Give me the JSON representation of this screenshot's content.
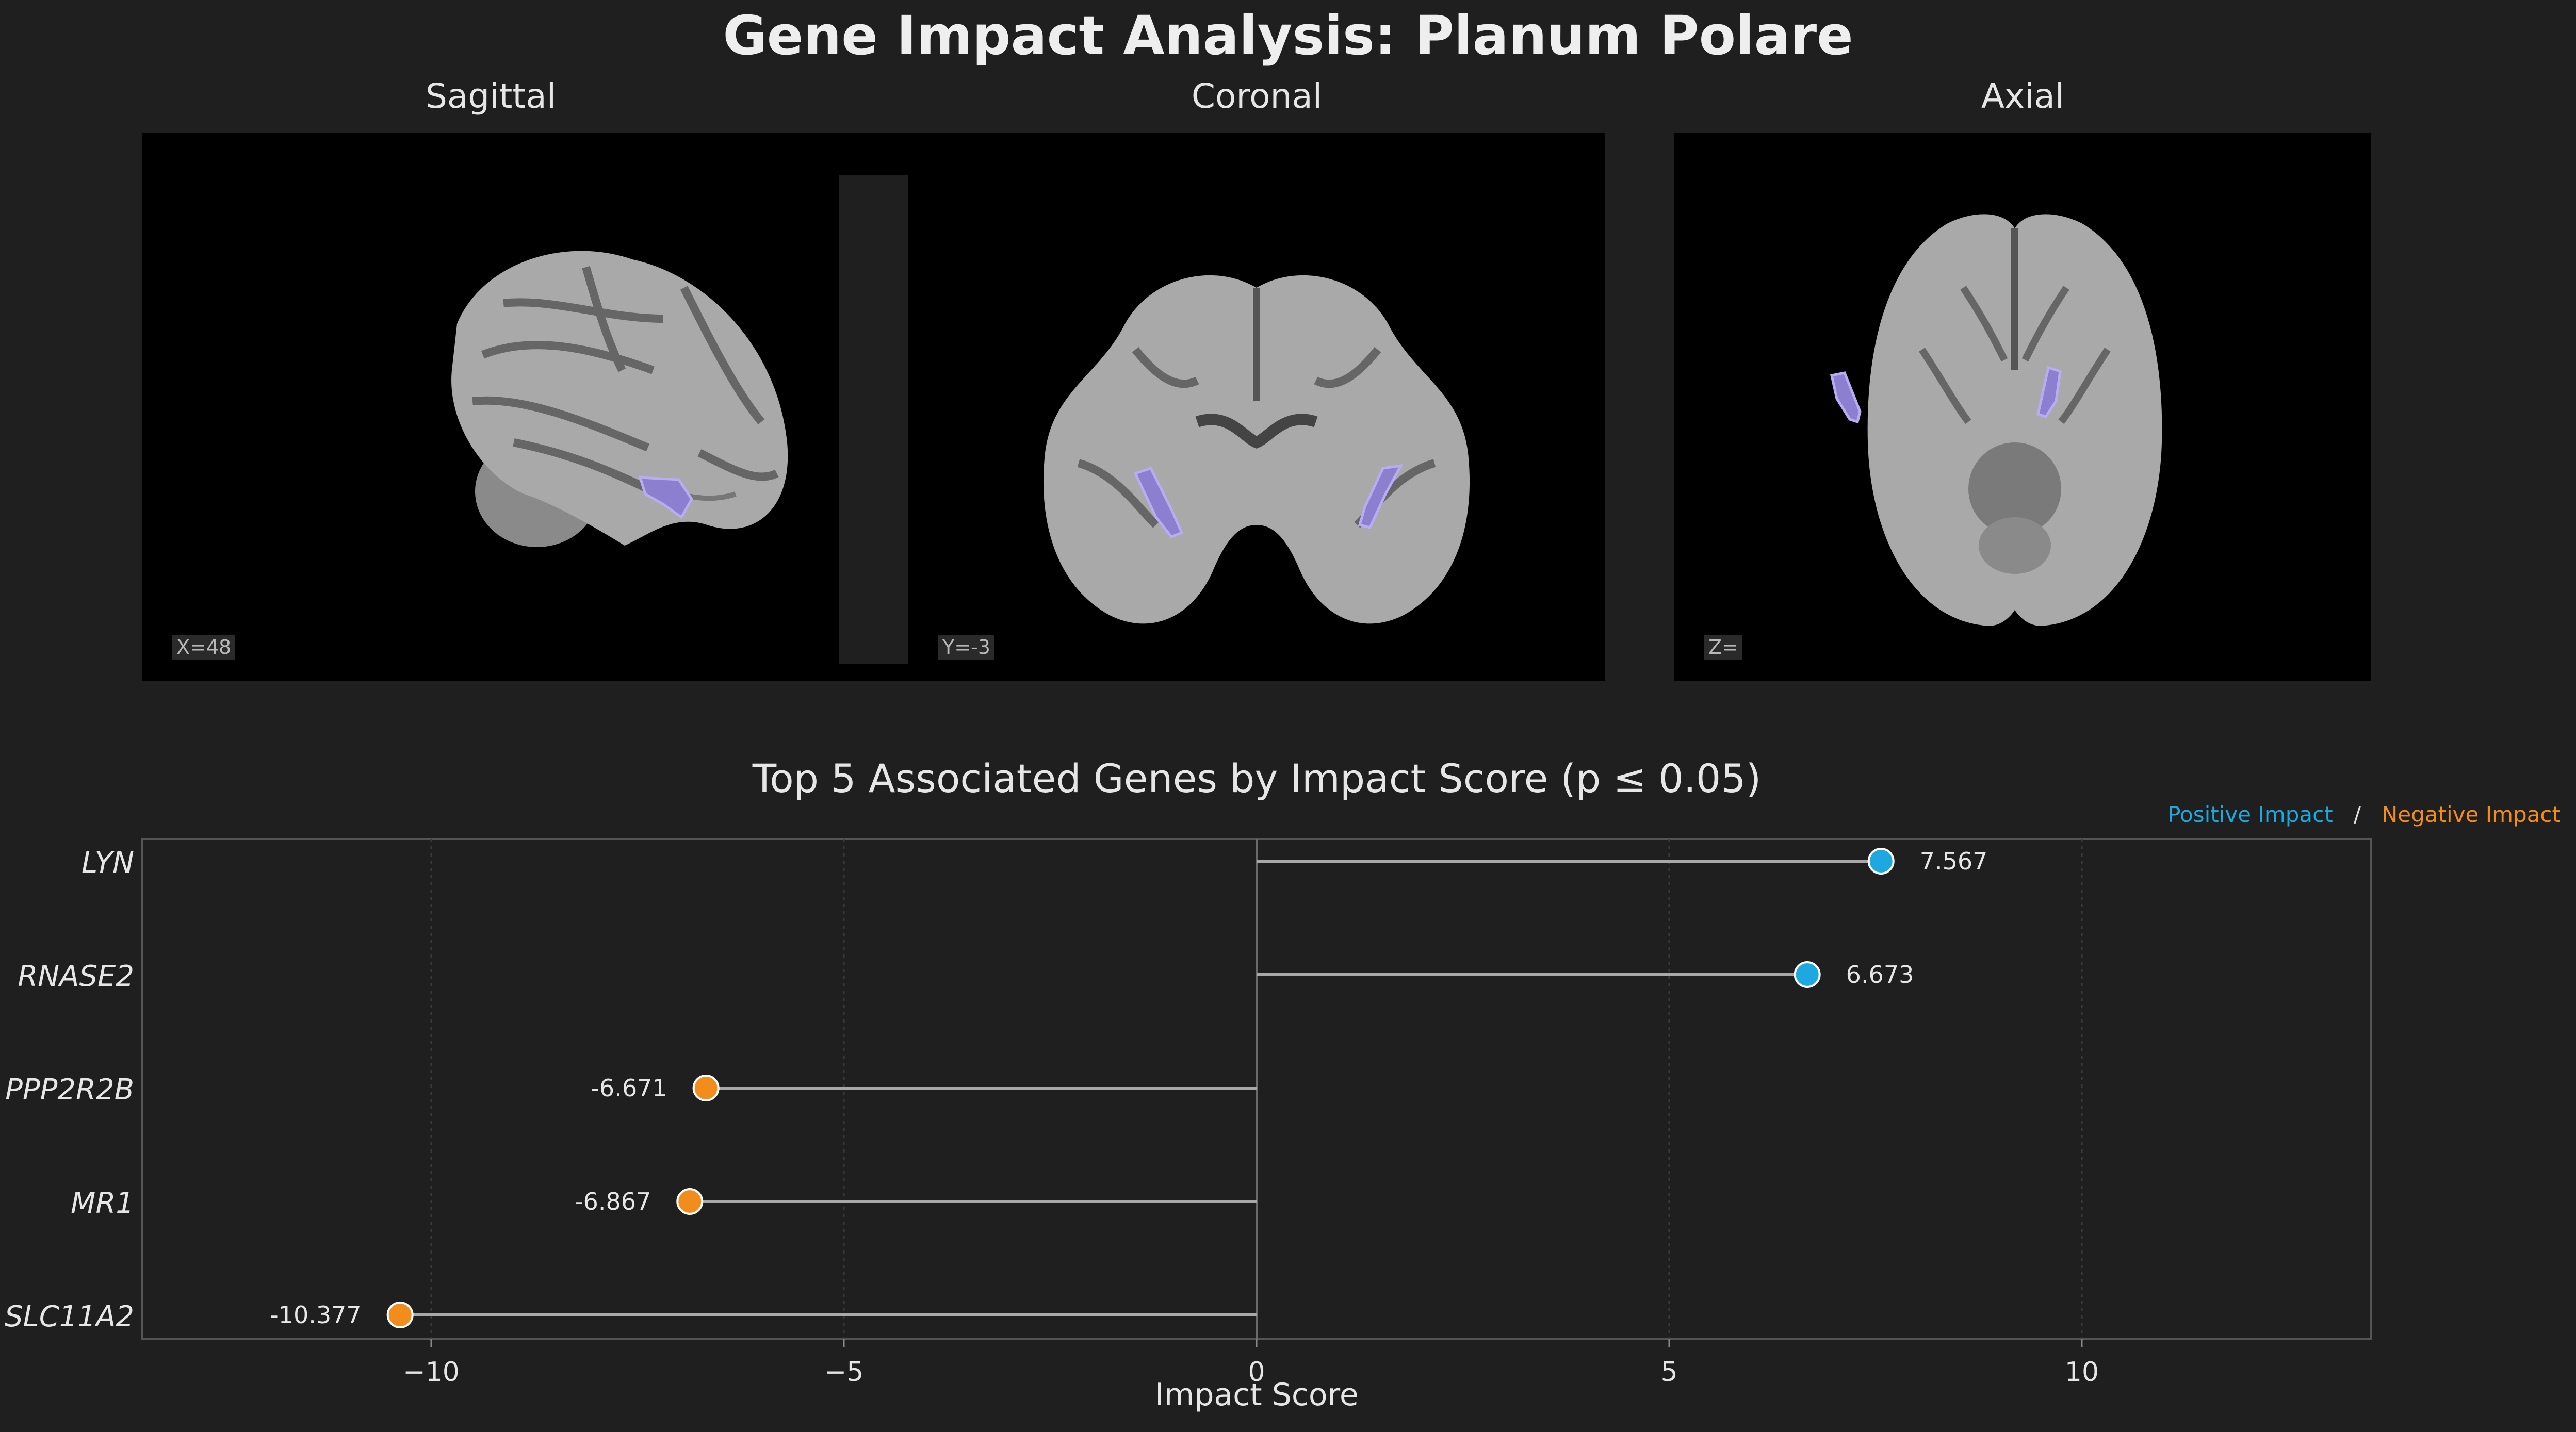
{
  "title": "Gene Impact Analysis: Planum Polare",
  "views": [
    {
      "name": "Sagittal",
      "coord": "X=48"
    },
    {
      "name": "Coronal",
      "coord": "Y=-3"
    },
    {
      "name": "Axial",
      "coord": "Z="
    }
  ],
  "colors": {
    "background": "#1f1f1f",
    "positive": "#1ea8e0",
    "negative": "#f28c1c",
    "region_overlay": "#8c7fd0",
    "stem": "#a8a8a8"
  },
  "legend": {
    "positive": "Positive Impact",
    "separator": "/",
    "negative": "Negative Impact"
  },
  "chart_data": {
    "type": "scatter",
    "style": "lollipop",
    "title": "Top 5 Associated Genes by Impact Score (p ≤ 0.05)",
    "xlabel": "Impact Score",
    "ylabel": "",
    "categories": [
      "LYN",
      "RNASE2",
      "PPP2R2B",
      "MR1",
      "SLC11A2"
    ],
    "values": [
      7.567,
      6.673,
      -6.671,
      -6.867,
      -10.377
    ],
    "value_labels": [
      "7.567",
      "6.673",
      "-6.671",
      "-6.867",
      "-10.377"
    ],
    "xlim": [
      -13.5,
      13.5
    ],
    "xticks": [
      -10,
      -5,
      0,
      5,
      10
    ],
    "xtick_labels": [
      "−10",
      "−5",
      "0",
      "5",
      "10"
    ],
    "grid": true,
    "legend_position": "top-right"
  }
}
